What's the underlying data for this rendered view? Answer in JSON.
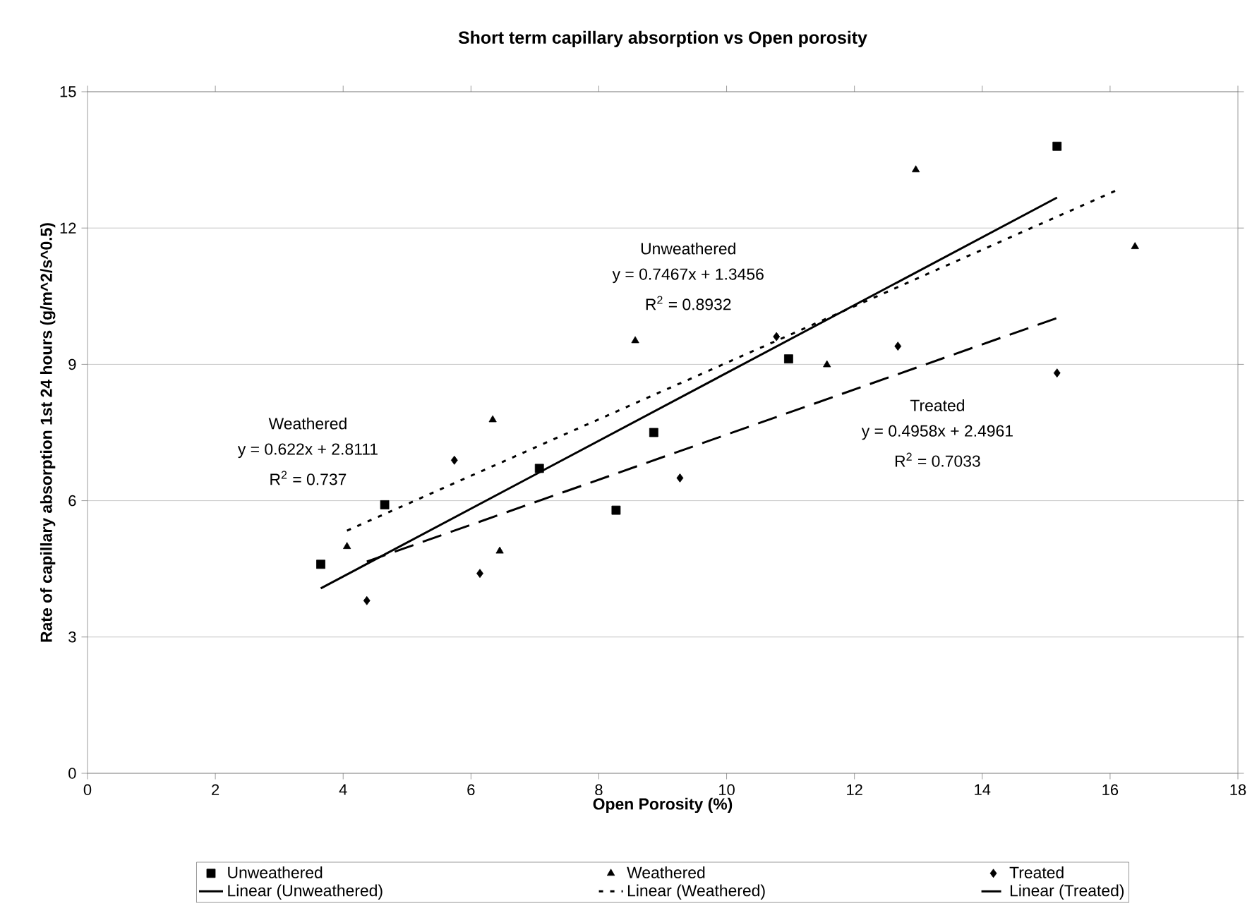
{
  "chart_data": {
    "type": "scatter",
    "title": "Short term capillary absorption vs Open porosity",
    "xlabel": "Open Porosity (%)",
    "ylabel": "Rate of capillary absorption 1st 24 hours (g/m^2/s^0.5)",
    "xlim": [
      0,
      18
    ],
    "xticks": [
      0,
      2,
      4,
      6,
      8,
      10,
      12,
      14,
      16,
      18
    ],
    "ylim": [
      0,
      15
    ],
    "yticks": [
      0,
      3,
      6,
      9,
      12,
      15
    ],
    "grid": "y",
    "legend": "bottom",
    "series": [
      {
        "name": "Unweathered",
        "marker": "square",
        "color": "#000000",
        "x": [
          3.65,
          4.65,
          7.07,
          8.27,
          8.86,
          10.97,
          15.17
        ],
        "values": [
          4.6,
          5.91,
          6.71,
          5.79,
          7.5,
          9.12,
          13.8
        ]
      },
      {
        "name": "Weathered",
        "marker": "triangle",
        "color": "#000000",
        "x": [
          4.06,
          6.34,
          6.45,
          8.57,
          11.57,
          12.96,
          16.39
        ],
        "values": [
          4.99,
          7.78,
          4.89,
          9.52,
          8.99,
          13.28,
          11.59
        ]
      },
      {
        "name": "Treated",
        "marker": "diamond",
        "color": "#000000",
        "x": [
          4.37,
          5.74,
          6.14,
          9.27,
          10.78,
          12.68,
          15.17
        ],
        "values": [
          3.8,
          6.89,
          4.4,
          6.5,
          9.61,
          9.4,
          8.81
        ]
      },
      {
        "name": "Linear (Unweathered)",
        "type": "line",
        "line_style": "solid",
        "color": "#000000",
        "x": [
          3.65,
          15.17
        ],
        "values": [
          4.07,
          12.67
        ]
      },
      {
        "name": "Linear (Weathered)",
        "type": "line",
        "line_style": "dotted",
        "color": "#000000",
        "x": [
          4.06,
          16.15
        ],
        "values": [
          5.34,
          12.86
        ]
      },
      {
        "name": "Linear (Treated)",
        "type": "line",
        "line_style": "dashed",
        "color": "#000000",
        "x": [
          4.37,
          15.17
        ],
        "values": [
          4.66,
          10.02
        ]
      }
    ],
    "annotations": [
      "Unweathered",
      "y = 0.7467x + 1.3456",
      "R$^{2}$ = 0.8932",
      "Weathered",
      "y = 0.622x + 2.8111",
      "R$^{2}$ = 0.737",
      "Treated",
      "y = 0.4958x + 2.4961",
      "R$^{2}$ = 0.7033"
    ]
  }
}
